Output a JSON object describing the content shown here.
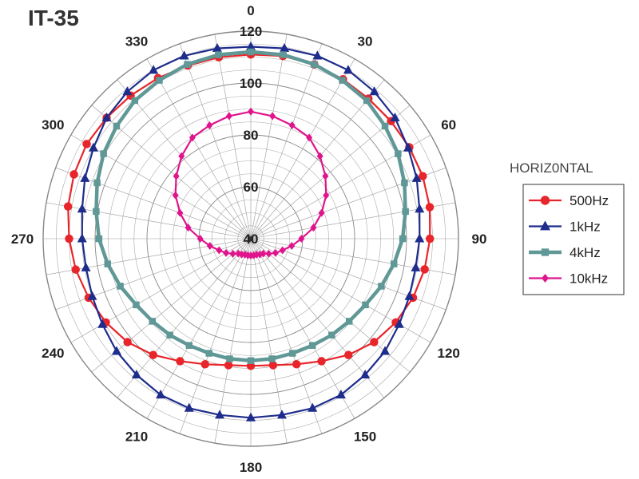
{
  "chart_data": {
    "type": "polar-line",
    "title": "IT-35",
    "radial_range": [
      40,
      120
    ],
    "radial_ticks": [
      "40",
      "60",
      "80",
      "100",
      "120"
    ],
    "angle_ticks": [
      "0",
      "30",
      "60",
      "90",
      "120",
      "150",
      "180",
      "210",
      "240",
      "270",
      "300",
      "330"
    ],
    "legend_title": "HORIZ0NTAL",
    "legend_position": "right",
    "grid": true,
    "angles": [
      0,
      10,
      20,
      30,
      40,
      50,
      60,
      70,
      80,
      90,
      100,
      110,
      120,
      130,
      140,
      150,
      160,
      170,
      180,
      190,
      200,
      210,
      220,
      230,
      240,
      250,
      260,
      270,
      280,
      290,
      300,
      310,
      320,
      330,
      340,
      350
    ],
    "series": [
      {
        "name": "500Hz",
        "color": "#e8252a",
        "marker": "circle",
        "values": [
          111,
          111.5,
          111.5,
          111,
          110.5,
          110.5,
          110.5,
          110.5,
          110,
          109,
          108,
          106.5,
          104.5,
          102,
          98.5,
          94.5,
          91.5,
          89.5,
          89,
          89.5,
          91.5,
          94.5,
          98.5,
          102,
          104.5,
          106.5,
          108.5,
          110,
          111.5,
          112.5,
          113,
          112.5,
          112,
          111.5,
          111,
          111
        ]
      },
      {
        "name": "1kHz",
        "color": "#1e2c8c",
        "marker": "triangle",
        "values": [
          114,
          114.5,
          115,
          115,
          114,
          112.5,
          110,
          108,
          106,
          105,
          104.5,
          105,
          106,
          107.5,
          108.5,
          109.5,
          109.5,
          109,
          109,
          109,
          109.5,
          109.5,
          108.5,
          107.5,
          106,
          105,
          104.5,
          105,
          106,
          108,
          110,
          112.5,
          114,
          115,
          115,
          114.5
        ]
      },
      {
        "name": "4kHz",
        "color": "#5f9896",
        "marker": "square",
        "values": [
          112,
          112,
          111.5,
          110.5,
          109.5,
          107.5,
          105.5,
          103,
          100.5,
          98.5,
          96,
          93.5,
          91,
          89.5,
          88.5,
          87.5,
          87,
          87,
          87,
          87,
          87,
          87.5,
          88.5,
          89.5,
          91,
          93.5,
          96,
          98.5,
          100.5,
          103,
          105.5,
          107.5,
          109.5,
          110.5,
          111.5,
          112
        ]
      },
      {
        "name": "10kHz",
        "color": "#e0148c",
        "marker": "diamond",
        "values": [
          89,
          88,
          86.5,
          85,
          81.5,
          77.5,
          73.5,
          69,
          64.5,
          59.5,
          56,
          53,
          51,
          49,
          47.5,
          47,
          46.5,
          46.5,
          46.5,
          46.5,
          46.5,
          47,
          47.5,
          49,
          51,
          53,
          56,
          59.5,
          64.5,
          69,
          73.5,
          77.5,
          81.5,
          85,
          86.5,
          88
        ]
      }
    ]
  }
}
